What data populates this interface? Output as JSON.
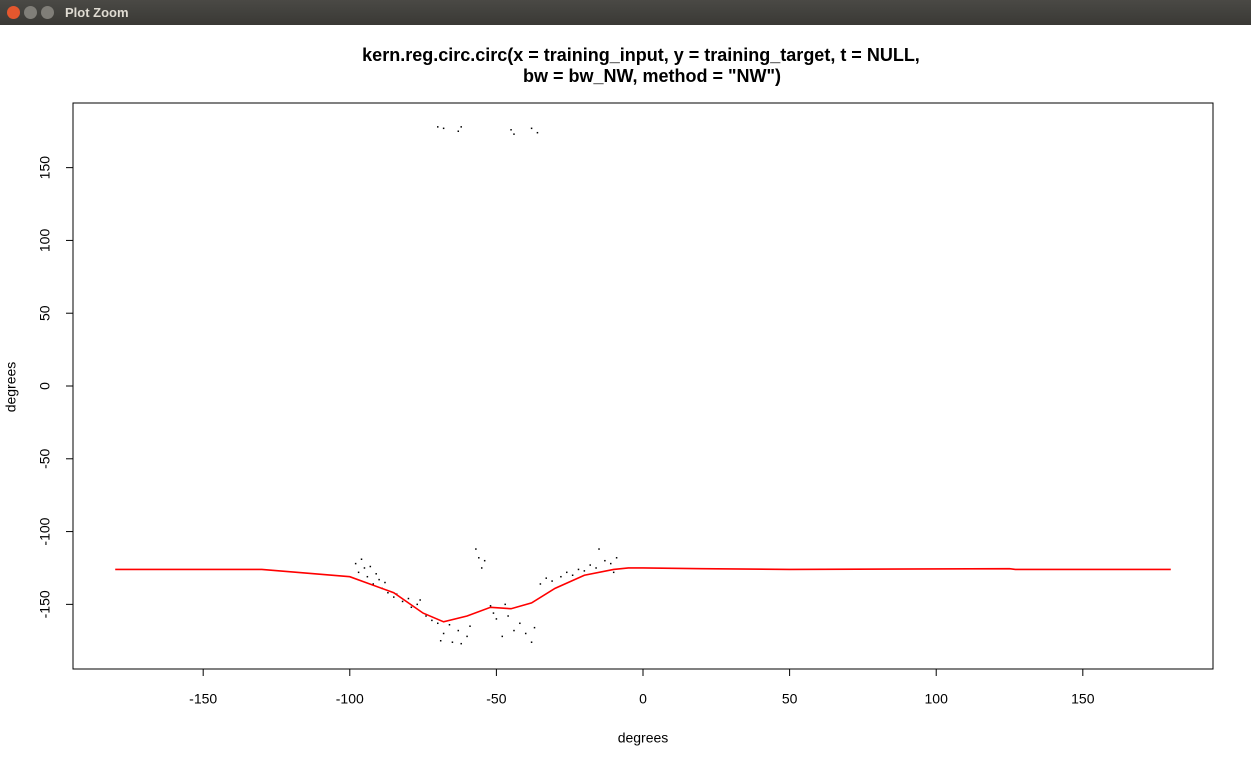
{
  "window": {
    "title": "Plot Zoom"
  },
  "chart_data": {
    "type": "scatter",
    "title": [
      "kern.reg.circ.circ(x = training_input, y = training_target, t = NULL,",
      "bw = bw_NW, method = \"NW\")"
    ],
    "x_label": "degrees",
    "y_label": "degrees",
    "xlim": [
      -194.4,
      194.4
    ],
    "ylim": [
      -194.4,
      194.4
    ],
    "xticks": [
      -150,
      -100,
      -50,
      0,
      50,
      100,
      150
    ],
    "yticks": [
      -150,
      -100,
      -50,
      0,
      50,
      100,
      150
    ],
    "series": [
      {
        "type": "scatter",
        "color": "#000000",
        "x": [
          -98,
          -97,
          -96,
          -95,
          -94,
          -93,
          -92,
          -91,
          -90,
          -89,
          -88,
          -87,
          -85,
          -84,
          -82,
          -80,
          -79,
          -77,
          -76,
          -74,
          -72,
          -70,
          -69,
          -68,
          -66,
          -65,
          -63,
          -62,
          -60,
          -59,
          -57,
          -56,
          -55,
          -54,
          -52,
          -51,
          -50,
          -48,
          -47,
          -46,
          -44,
          -42,
          -40,
          -38,
          -37,
          -35,
          -33,
          -31,
          -28,
          -26,
          -24,
          -22,
          -20,
          -18,
          -16,
          -15,
          -13,
          -11,
          -10,
          -9,
          -70,
          -68,
          -63,
          -62,
          -45,
          -44,
          -38,
          -36
        ],
        "values": [
          -122,
          -128,
          -119,
          -125,
          -131,
          -124,
          -136,
          -129,
          -133,
          -139,
          -135,
          -142,
          -145,
          -143,
          -148,
          -146,
          -152,
          -150,
          -147,
          -158,
          -161,
          -163,
          -175,
          -170,
          -164,
          -176,
          -168,
          -177,
          -172,
          -165,
          -112,
          -118,
          -125,
          -120,
          -151,
          -156,
          -160,
          -172,
          -150,
          -158,
          -168,
          -163,
          -170,
          -176,
          -166,
          -136,
          -132,
          -134,
          -131,
          -128,
          -130,
          -126,
          -127,
          -123,
          -125,
          -112,
          -120,
          -122,
          -128,
          -118,
          178,
          177,
          175,
          178,
          176,
          173,
          177,
          174
        ]
      },
      {
        "type": "line",
        "color": "#ff0000",
        "x": [
          -180,
          -130,
          -100,
          -85,
          -75,
          -68,
          -60,
          -52,
          -45,
          -38,
          -30,
          -20,
          -10,
          -5,
          0,
          20,
          50,
          125,
          127,
          180
        ],
        "values": [
          -126,
          -126,
          -131,
          -142,
          -156,
          -162,
          -158,
          -152,
          -153,
          -149,
          -139,
          -130,
          -126,
          -125,
          -125,
          -125.5,
          -126,
          -125.5,
          -126,
          -126
        ]
      }
    ]
  }
}
